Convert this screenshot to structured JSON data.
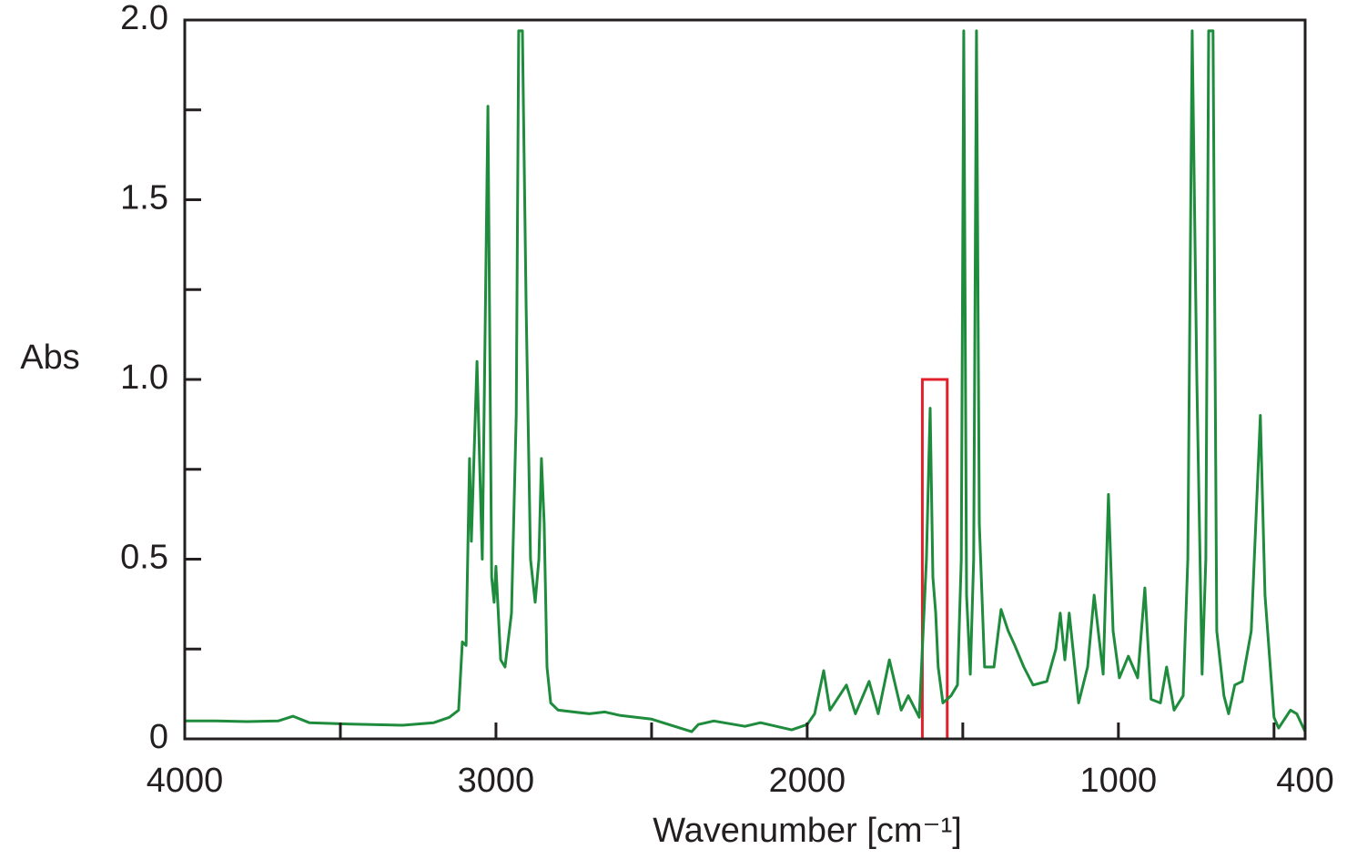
{
  "chart_data": {
    "type": "line",
    "xlabel": "Wavenumber [cm⁻¹]",
    "ylabel": "Abs",
    "color": "#1e8c3c",
    "xlim": [
      4000,
      400
    ],
    "ylim": [
      0,
      2
    ],
    "xticks": [
      4000,
      3000,
      2000,
      1000,
      400
    ],
    "xminor_ticks": [
      3500,
      2500,
      1500,
      500
    ],
    "yticks": [
      0,
      0.5,
      {
        "value": 1,
        "label": "1.0"
      },
      1.5,
      {
        "value": 2,
        "label": "2.0"
      }
    ],
    "yminor_ticks": [
      0.25,
      0.75,
      1.25,
      1.75
    ],
    "highlight_box": {
      "x": [
        1630,
        1550
      ],
      "y": [
        0,
        1.0
      ],
      "color": "#e0202a"
    },
    "x": [
      4000,
      3900,
      3800,
      3700,
      3652,
      3600,
      3500,
      3400,
      3300,
      3200,
      3150,
      3120,
      3108,
      3096,
      3085,
      3079,
      3073,
      3061,
      3052,
      3044,
      3026,
      3014,
      3006,
      3000,
      2985,
      2971,
      2950,
      2935,
      2927,
      2915,
      2903,
      2889,
      2874,
      2862,
      2854,
      2845,
      2836,
      2824,
      2800,
      2700,
      2650,
      2600,
      2500,
      2371,
      2350,
      2300,
      2200,
      2150,
      2050,
      2000,
      1976,
      1947,
      1927,
      1874,
      1845,
      1801,
      1772,
      1736,
      1698,
      1675,
      1640,
      1617,
      1605,
      1596,
      1587,
      1579,
      1564,
      1538,
      1517,
      1505,
      1497,
      1488,
      1476,
      1465,
      1456,
      1447,
      1430,
      1400,
      1377,
      1354,
      1333,
      1304,
      1274,
      1230,
      1201,
      1187,
      1172,
      1158,
      1128,
      1099,
      1078,
      1049,
      1032,
      1017,
      997,
      968,
      938,
      915,
      895,
      865,
      845,
      821,
      792,
      777,
      763,
      748,
      731,
      719,
      710,
      696,
      684,
      661,
      646,
      626,
      602,
      573,
      544,
      529,
      500,
      485,
      447,
      427,
      400
    ],
    "values": [
      0.05,
      0.05,
      0.048,
      0.05,
      0.063,
      0.045,
      0.042,
      0.04,
      0.038,
      0.045,
      0.06,
      0.08,
      0.27,
      0.26,
      0.78,
      0.55,
      0.72,
      1.05,
      0.75,
      0.5,
      1.76,
      0.45,
      0.38,
      0.48,
      0.22,
      0.2,
      0.35,
      0.9,
      1.97,
      1.97,
      1.2,
      0.5,
      0.38,
      0.5,
      0.78,
      0.6,
      0.2,
      0.1,
      0.08,
      0.07,
      0.075,
      0.065,
      0.055,
      0.02,
      0.04,
      0.05,
      0.035,
      0.045,
      0.025,
      0.04,
      0.07,
      0.19,
      0.08,
      0.15,
      0.07,
      0.16,
      0.07,
      0.22,
      0.08,
      0.12,
      0.06,
      0.5,
      0.92,
      0.45,
      0.35,
      0.2,
      0.1,
      0.12,
      0.15,
      0.5,
      1.97,
      0.4,
      0.18,
      0.5,
      1.97,
      0.6,
      0.2,
      0.2,
      0.36,
      0.3,
      0.26,
      0.2,
      0.15,
      0.16,
      0.25,
      0.35,
      0.22,
      0.35,
      0.1,
      0.2,
      0.4,
      0.18,
      0.68,
      0.3,
      0.17,
      0.23,
      0.17,
      0.42,
      0.11,
      0.1,
      0.2,
      0.08,
      0.12,
      0.5,
      1.97,
      1.0,
      0.18,
      0.5,
      1.97,
      1.97,
      0.3,
      0.12,
      0.07,
      0.15,
      0.16,
      0.3,
      0.9,
      0.4,
      0.06,
      0.03,
      0.08,
      0.07,
      0.02
    ]
  }
}
